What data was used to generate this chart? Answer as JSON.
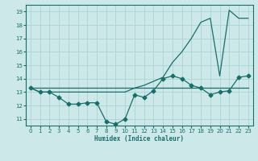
{
  "xlabel": "Humidex (Indice chaleur)",
  "bg_color": "#cce8e8",
  "grid_color": "#aad4d4",
  "line_color": "#1a6e6a",
  "xlim": [
    -0.5,
    23.5
  ],
  "ylim": [
    10.5,
    19.5
  ],
  "yticks": [
    11,
    12,
    13,
    14,
    15,
    16,
    17,
    18,
    19
  ],
  "xticks": [
    0,
    1,
    2,
    3,
    4,
    5,
    6,
    7,
    8,
    9,
    10,
    11,
    12,
    13,
    14,
    15,
    16,
    17,
    18,
    19,
    20,
    21,
    22,
    23
  ],
  "line1_x": [
    0,
    23
  ],
  "line1_y": [
    13.3,
    13.3
  ],
  "line2_x": [
    0,
    1,
    2,
    3,
    4,
    5,
    6,
    7,
    8,
    9,
    10,
    11,
    12,
    13,
    14,
    15,
    16,
    17,
    18,
    19,
    20,
    21,
    22,
    23
  ],
  "line2_y": [
    13.3,
    13.0,
    13.0,
    12.6,
    12.1,
    12.1,
    12.2,
    12.2,
    10.8,
    10.6,
    11.0,
    12.8,
    12.6,
    13.1,
    14.0,
    14.2,
    14.0,
    13.5,
    13.3,
    12.8,
    13.0,
    13.1,
    14.1,
    14.2
  ],
  "line3_x": [
    0,
    1,
    2,
    3,
    4,
    5,
    6,
    7,
    8,
    9,
    10,
    11,
    12,
    13,
    14,
    15,
    16,
    17,
    18,
    19,
    20,
    21,
    22,
    23
  ],
  "line3_y": [
    13.3,
    13.0,
    13.0,
    13.0,
    13.0,
    13.0,
    13.0,
    13.0,
    13.0,
    13.0,
    13.0,
    13.3,
    13.5,
    13.8,
    14.1,
    15.2,
    16.0,
    17.0,
    18.2,
    18.5,
    14.2,
    19.1,
    18.5,
    18.5
  ],
  "marker": "D",
  "markersize": 2.5,
  "lw": 0.9
}
